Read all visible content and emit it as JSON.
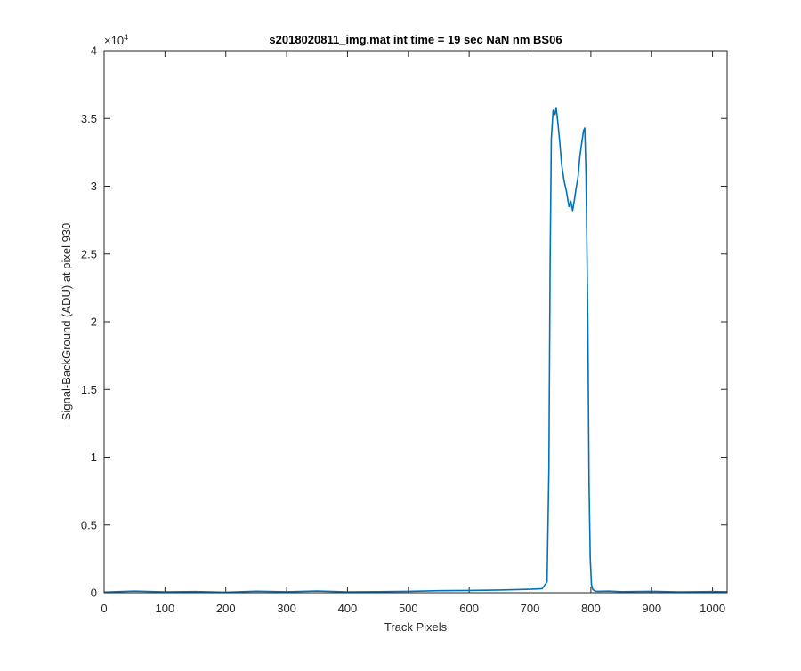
{
  "chart_data": {
    "type": "line",
    "title": "s2018020811_img.mat int time = 19 sec  NaN nm BS06",
    "xlabel": "Track Pixels",
    "ylabel": "Signal-BackGround (ADU) at pixel 930",
    "xlim": [
      0,
      1024
    ],
    "ylim": [
      0,
      40000
    ],
    "x_ticks": [
      0,
      100,
      200,
      300,
      400,
      500,
      600,
      700,
      800,
      900,
      1000
    ],
    "x_tick_labels": [
      "0",
      "100",
      "200",
      "300",
      "400",
      "500",
      "600",
      "700",
      "800",
      "900",
      "1000"
    ],
    "y_ticks": [
      0,
      5000,
      10000,
      15000,
      20000,
      25000,
      30000,
      35000,
      40000
    ],
    "y_tick_labels": [
      "0",
      "0.5",
      "1",
      "1.5",
      "2",
      "2.5",
      "3",
      "3.5",
      "4"
    ],
    "y_exponent_label": "×10",
    "y_exponent_power": "4",
    "grid": false,
    "line_color": "#0072BD",
    "series": [
      {
        "x": [
          0,
          50,
          100,
          150,
          200,
          250,
          300,
          350,
          400,
          450,
          500,
          550,
          600,
          650,
          700,
          720,
          728,
          731,
          733,
          735,
          738,
          741,
          743,
          746,
          749,
          752,
          756,
          760,
          764,
          767,
          770,
          773,
          776,
          779,
          782,
          785,
          788,
          790,
          792,
          795,
          797,
          799,
          801,
          803,
          806,
          810,
          830,
          850,
          900,
          950,
          1000,
          1024
        ],
        "y": [
          50,
          120,
          60,
          90,
          40,
          110,
          70,
          130,
          60,
          80,
          100,
          150,
          170,
          200,
          260,
          300,
          800,
          9000,
          24000,
          33500,
          35600,
          35300,
          35800,
          34600,
          33200,
          31600,
          30400,
          29600,
          28500,
          28900,
          28200,
          29000,
          29900,
          30700,
          32200,
          33200,
          34100,
          34300,
          31000,
          20000,
          8000,
          2500,
          600,
          250,
          150,
          100,
          120,
          80,
          100,
          60,
          90,
          70
        ]
      }
    ]
  }
}
